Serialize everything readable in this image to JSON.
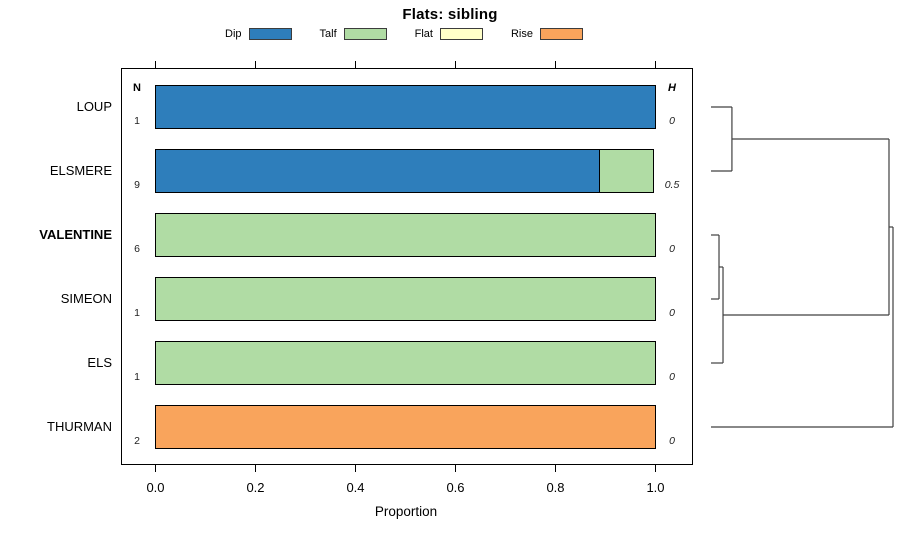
{
  "chart_data": {
    "type": "bar",
    "variant": "horizontal_stacked_proportion_with_dendrogram",
    "title": "Flats: sibling",
    "xlabel": "Proportion",
    "xlim": [
      0,
      1
    ],
    "grid": false,
    "legend_position": "top",
    "xticks": [
      {
        "value": 0.0,
        "label": "0.0"
      },
      {
        "value": 0.2,
        "label": "0.2"
      },
      {
        "value": 0.4,
        "label": "0.4"
      },
      {
        "value": 0.6,
        "label": "0.6"
      },
      {
        "value": 0.8,
        "label": "0.8"
      },
      {
        "value": 1.0,
        "label": "1.0"
      }
    ],
    "categories": [
      {
        "label": "Dip",
        "color": "#2E7EBB"
      },
      {
        "label": "Talf",
        "color": "#B0DCA4"
      },
      {
        "label": "Flat",
        "color": "#FFFFC9"
      },
      {
        "label": "Rise",
        "color": "#F9A45C"
      }
    ],
    "columns": {
      "n_header": "N",
      "h_header": "H"
    },
    "rows": [
      {
        "label": "LOUP",
        "bold": false,
        "n": "1",
        "h": "0",
        "segments": [
          {
            "category": "Dip",
            "value": 1.0
          }
        ]
      },
      {
        "label": "ELSMERE",
        "bold": false,
        "n": "9",
        "h": "0.5",
        "segments": [
          {
            "category": "Dip",
            "value": 0.889
          },
          {
            "category": "Talf",
            "value": 0.111
          }
        ]
      },
      {
        "label": "VALENTINE",
        "bold": true,
        "n": "6",
        "h": "0",
        "segments": [
          {
            "category": "Talf",
            "value": 1.0
          }
        ]
      },
      {
        "label": "SIMEON",
        "bold": false,
        "n": "1",
        "h": "0",
        "segments": [
          {
            "category": "Talf",
            "value": 1.0
          }
        ]
      },
      {
        "label": "ELS",
        "bold": false,
        "n": "1",
        "h": "0",
        "segments": [
          {
            "category": "Talf",
            "value": 1.0
          }
        ]
      },
      {
        "label": "THURMAN",
        "bold": false,
        "n": "2",
        "h": "0",
        "segments": [
          {
            "category": "Rise",
            "value": 1.0
          }
        ]
      }
    ],
    "dendrogram": {
      "side": "right",
      "line_color": "#404040",
      "tree": {
        "height": 1.0,
        "children": [
          {
            "height": 0.978,
            "children": [
              {
                "height": 0.115,
                "children": [
                  {
                    "leaf": "LOUP"
                  },
                  {
                    "leaf": "ELSMERE"
                  }
                ]
              },
              {
                "height": 0.066,
                "children": [
                  {
                    "height": 0.044,
                    "children": [
                      {
                        "leaf": "VALENTINE"
                      },
                      {
                        "leaf": "SIMEON"
                      }
                    ]
                  },
                  {
                    "leaf": "ELS"
                  }
                ]
              }
            ]
          },
          {
            "leaf": "THURMAN"
          }
        ]
      }
    }
  }
}
